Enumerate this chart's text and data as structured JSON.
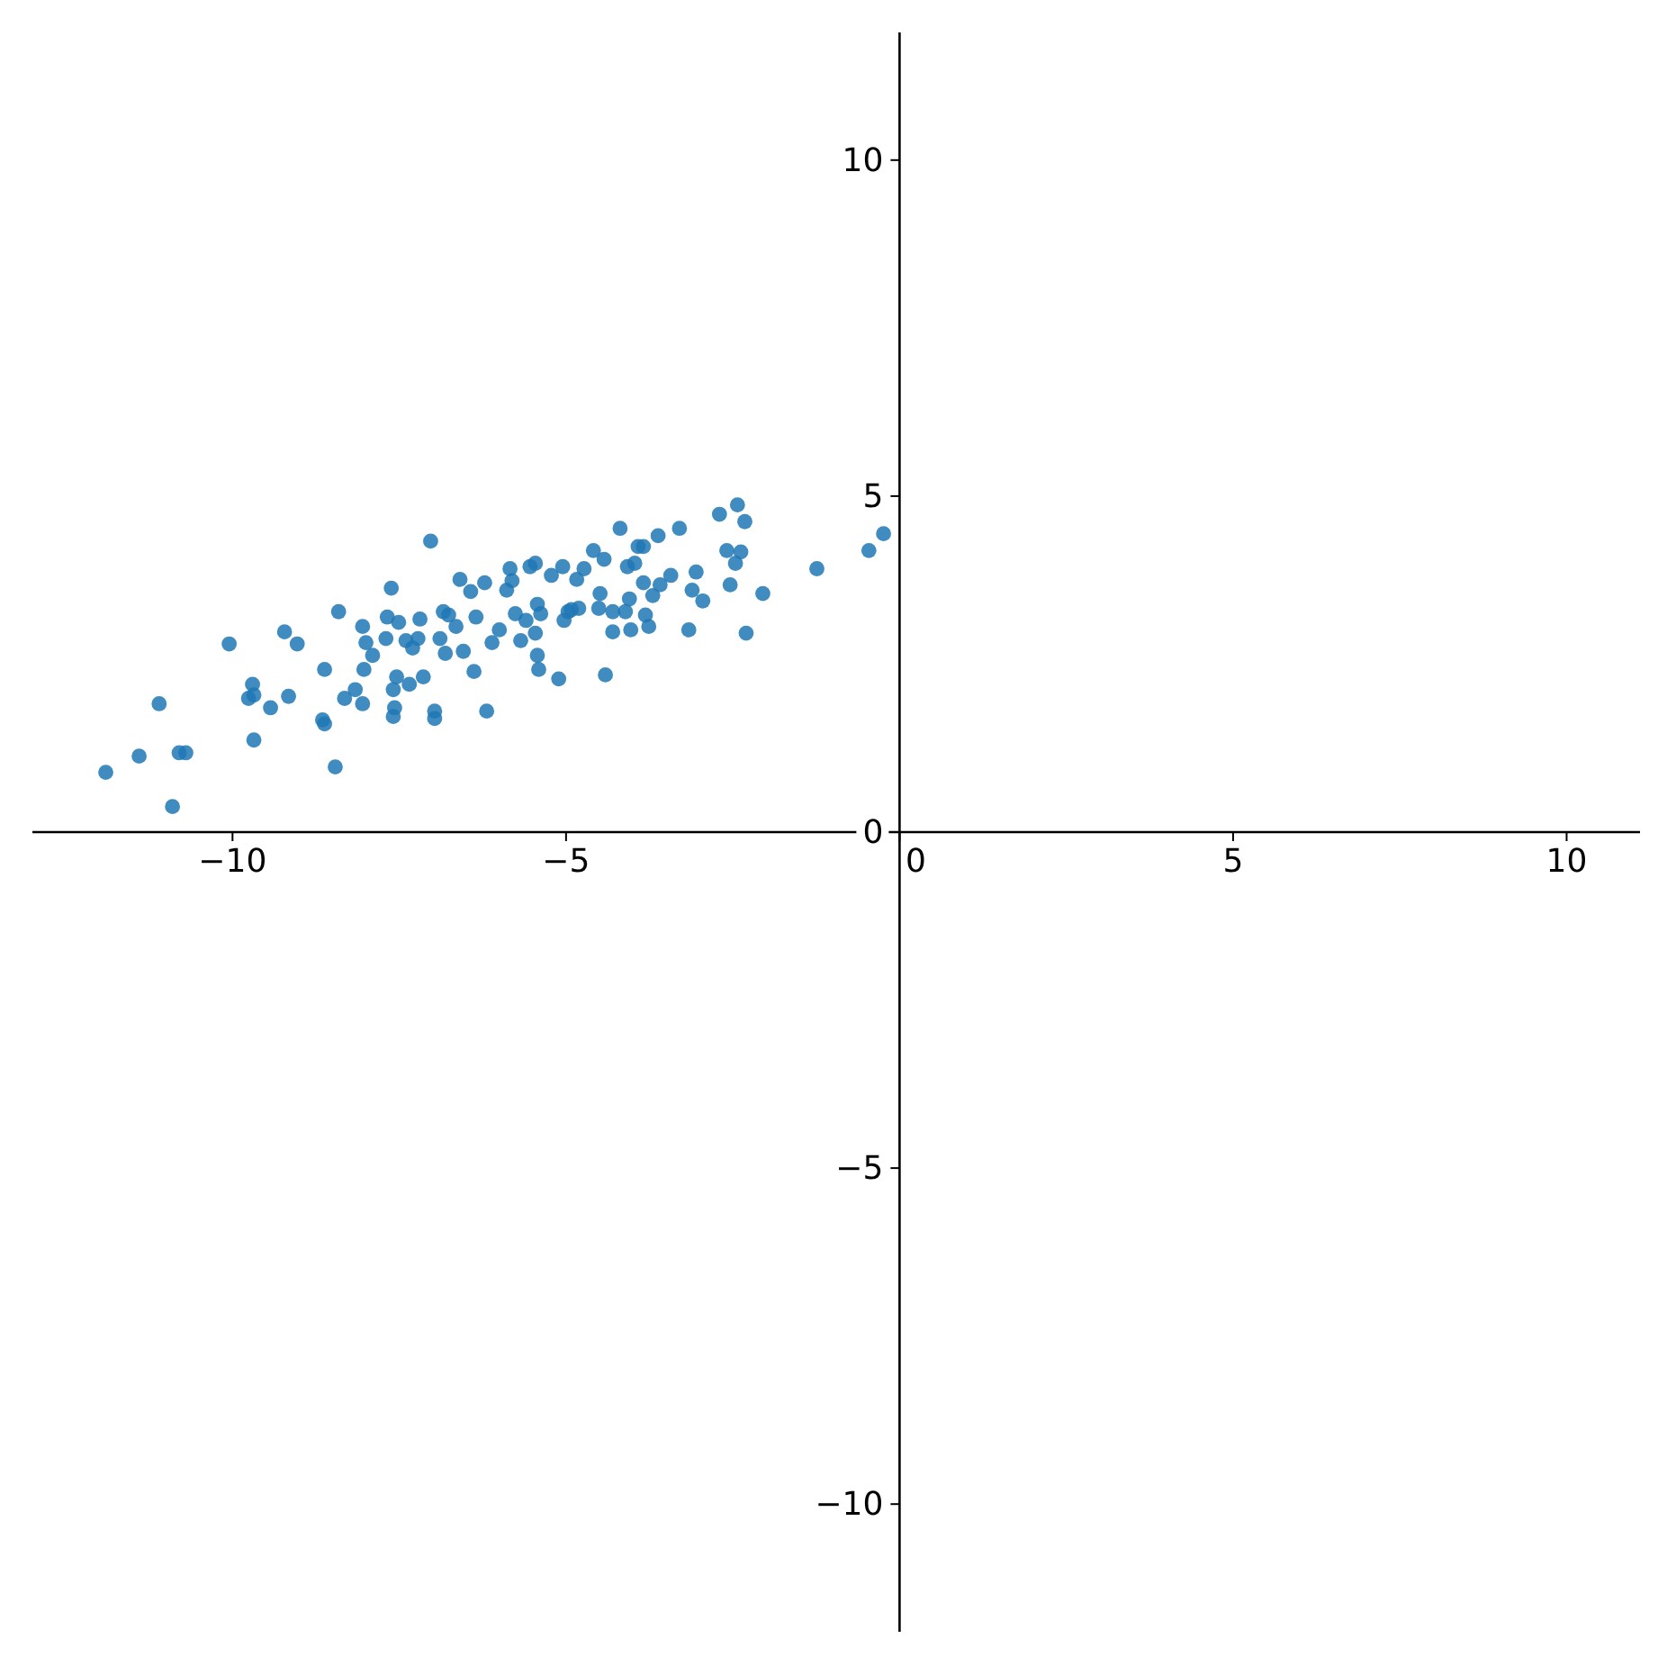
{
  "chart_data": {
    "type": "scatter",
    "x": [
      -11.9,
      -11.4,
      -11.1,
      -10.9,
      -10.8,
      -10.7,
      -10.05,
      -9.76,
      -9.7,
      -9.68,
      -9.68,
      -9.43,
      -9.22,
      -9.16,
      -9.03,
      -8.65,
      -8.62,
      -8.62,
      -8.46,
      -8.41,
      -8.32,
      -8.16,
      -8.05,
      -8.05,
      -8.03,
      -8.0,
      -7.9,
      -7.7,
      -7.68,
      -7.62,
      -7.59,
      -7.59,
      -7.57,
      -7.51,
      -7.54,
      -7.4,
      -7.35,
      -7.3,
      -7.22,
      -7.19,
      -7.14,
      -7.03,
      -6.97,
      -6.97,
      -6.89,
      -6.84,
      -6.76,
      -6.81,
      -6.65,
      -6.59,
      -6.54,
      -6.43,
      -6.38,
      -6.35,
      -6.22,
      -6.19,
      -6.11,
      -6.0,
      -5.89,
      -5.84,
      -5.81,
      -5.76,
      -5.68,
      -5.6,
      -5.54,
      -5.46,
      -5.46,
      -5.43,
      -5.43,
      -5.41,
      -5.38,
      -5.22,
      -5.11,
      -5.05,
      -5.03,
      -4.97,
      -4.92,
      -4.84,
      -4.81,
      -4.73,
      -4.59,
      -4.51,
      -4.49,
      -4.43,
      -4.41,
      -4.3,
      -4.3,
      -4.19,
      -4.11,
      -4.08,
      -4.05,
      -4.03,
      -3.97,
      -3.92,
      -3.84,
      -3.84,
      -3.81,
      -3.76,
      -3.7,
      -3.62,
      -3.59,
      -3.43,
      -3.3,
      -3.16,
      -3.11,
      -3.05,
      -2.95,
      -2.7,
      -2.59,
      -2.54,
      -2.46,
      -2.43,
      -2.38,
      -2.32,
      -2.3,
      -2.05,
      -1.24,
      -0.46,
      -0.24
    ],
    "values": [
      0.89,
      1.13,
      1.91,
      0.38,
      1.18,
      1.18,
      2.8,
      1.99,
      2.2,
      2.04,
      1.37,
      1.85,
      2.98,
      2.02,
      2.8,
      1.67,
      1.61,
      2.42,
      0.97,
      3.28,
      1.99,
      2.12,
      1.91,
      3.06,
      2.42,
      2.82,
      2.63,
      2.88,
      3.2,
      3.63,
      1.72,
      2.12,
      1.85,
      3.12,
      2.31,
      2.85,
      2.2,
      2.74,
      2.88,
      3.17,
      2.31,
      4.33,
      1.8,
      1.69,
      2.88,
      3.28,
      3.23,
      2.66,
      3.06,
      3.76,
      2.69,
      3.58,
      2.39,
      3.2,
      3.71,
      1.8,
      2.82,
      3.01,
      3.6,
      3.92,
      3.74,
      3.25,
      2.85,
      3.15,
      3.95,
      4.0,
      2.96,
      3.39,
      2.63,
      2.42,
      3.25,
      3.82,
      2.28,
      3.95,
      3.15,
      3.28,
      3.31,
      3.76,
      3.33,
      3.92,
      4.19,
      3.33,
      3.55,
      4.06,
      2.34,
      2.98,
      3.28,
      4.52,
      3.28,
      3.95,
      3.47,
      3.01,
      4.0,
      4.25,
      4.25,
      3.71,
      3.23,
      3.06,
      3.52,
      4.41,
      3.68,
      3.82,
      4.52,
      3.01,
      3.6,
      3.87,
      3.44,
      4.73,
      4.19,
      3.68,
      4.0,
      4.87,
      4.17,
      4.62,
      2.96,
      3.55,
      3.92,
      4.19,
      4.44
    ],
    "color": "#1f77b4",
    "marker": "circle",
    "xlim": [
      -13,
      11.1
    ],
    "ylim": [
      -11.9,
      11.9
    ],
    "xticks": [
      -10,
      -5,
      0,
      5,
      10
    ],
    "yticks": [
      -10,
      -5,
      0,
      5,
      10
    ]
  }
}
